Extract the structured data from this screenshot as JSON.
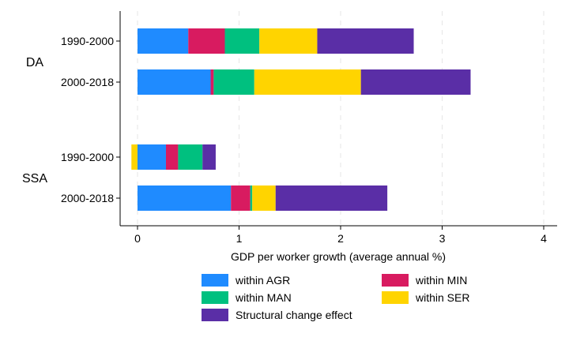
{
  "chart_data": {
    "type": "bar",
    "orientation": "horizontal",
    "stacked": true,
    "xlabel": "GDP per worker growth (average annual %)",
    "xlim": [
      -0.15,
      4.1
    ],
    "xticks": [
      "0",
      "1",
      "2",
      "3",
      "4"
    ],
    "xtick_values": [
      0,
      1,
      2,
      3,
      4
    ],
    "grid": "vertical dashed",
    "legend_position": "bottom",
    "groups": [
      {
        "label": "DA",
        "categories": [
          "1990-2000",
          "2000-2018"
        ]
      },
      {
        "label": "SSA",
        "categories": [
          "1990-2000",
          "2000-2018"
        ]
      }
    ],
    "rows": [
      {
        "group": "DA",
        "category": "1990-2000"
      },
      {
        "group": "DA",
        "category": "2000-2018"
      },
      {
        "group": "SSA",
        "category": "1990-2000"
      },
      {
        "group": "SSA",
        "category": "2000-2018"
      }
    ],
    "series": [
      {
        "name": "within AGR",
        "color": "#1f8bff",
        "values": [
          0.5,
          0.72,
          0.28,
          0.92
        ]
      },
      {
        "name": "within MIN",
        "color": "#d81b60",
        "values": [
          0.36,
          0.03,
          0.12,
          0.19
        ]
      },
      {
        "name": "within MAN",
        "color": "#00c07f",
        "values": [
          0.34,
          0.4,
          0.24,
          0.02
        ]
      },
      {
        "name": "within SER",
        "color": "#ffd400",
        "values": [
          0.57,
          1.05,
          -0.06,
          0.23
        ]
      },
      {
        "name": "Structural change effect",
        "color": "#5a2ea6",
        "values": [
          0.95,
          1.08,
          0.13,
          1.1
        ]
      }
    ],
    "legend_order": [
      "within AGR",
      "within MIN",
      "within MAN",
      "within SER",
      "Structural change effect"
    ]
  }
}
